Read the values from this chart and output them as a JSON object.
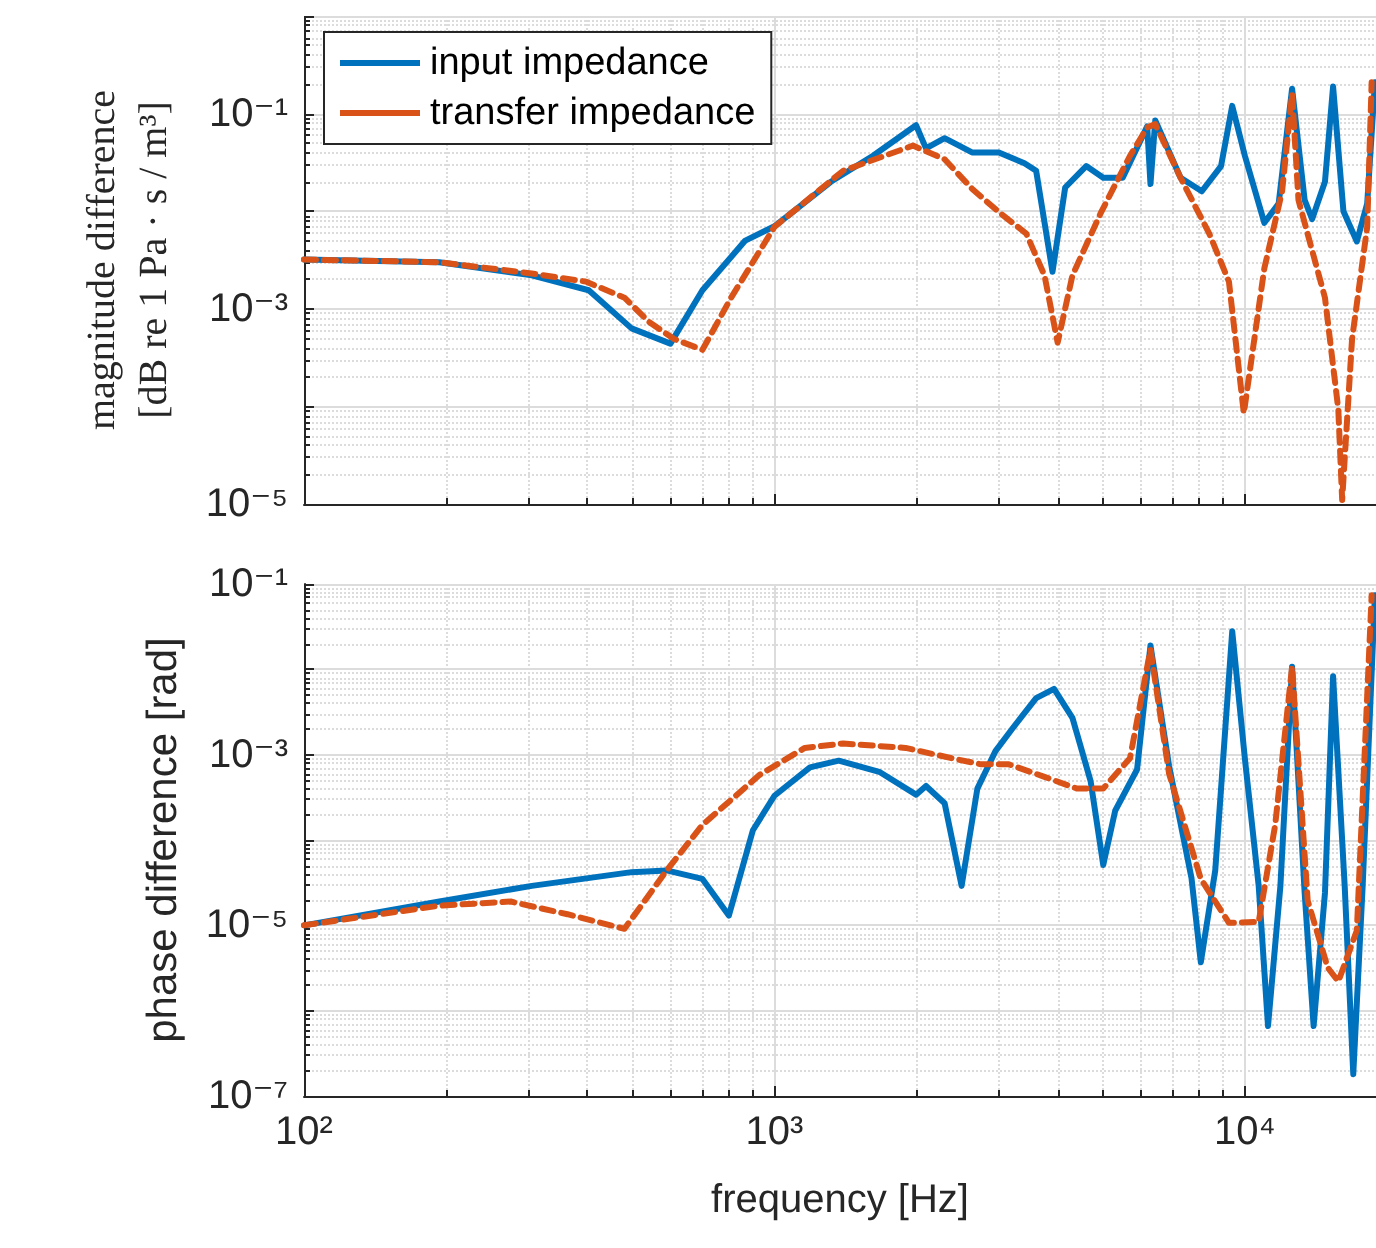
{
  "chart_data": [
    {
      "type": "line",
      "ylabel": "magnitude difference\n[dB re 1 Pa · s / m³]",
      "legend": "top left",
      "grid": true,
      "marker": "none",
      "log": "xy",
      "tick_labels": "y",
      "xlim": [
        100,
        19000
      ],
      "ylim": [
        1e-05,
        1
      ],
      "xticks": [
        {
          "value": 100,
          "label": null
        },
        {
          "value": 1000,
          "label": null
        },
        {
          "value": 10000,
          "label": null
        }
      ],
      "yticks": [
        {
          "value": 1e-05,
          "label": "10⁻⁵"
        },
        {
          "value": 0.0001,
          "label": null
        },
        {
          "value": 0.001,
          "label": "10⁻³"
        },
        {
          "value": 0.01,
          "label": null
        },
        {
          "value": 0.1,
          "label": "10⁻¹"
        },
        {
          "value": 1,
          "label": null
        }
      ],
      "series": [
        {
          "name": "input impedance",
          "color": "#0072bd",
          "line_style": "solid",
          "x": [
            100,
            194,
            305,
            403,
            497,
            601,
            703,
            867,
            1000,
            1318,
            1620,
            2000,
            2100,
            2300,
            2630,
            3000,
            3400,
            3600,
            3900,
            4150,
            4600,
            5000,
            5500,
            6200,
            6300,
            6450,
            7300,
            8100,
            8900,
            9400,
            10000,
            11000,
            11800,
            12600,
            13400,
            13900,
            14800,
            15400,
            16200,
            17300,
            18200,
            18900
          ],
          "values": [
            0.0032,
            0.003,
            0.0022,
            0.00155,
            0.00063,
            0.00044,
            0.00155,
            0.005,
            0.007,
            0.02,
            0.037,
            0.076,
            0.044,
            0.056,
            0.04,
            0.04,
            0.031,
            0.026,
            0.0024,
            0.0175,
            0.029,
            0.022,
            0.022,
            0.074,
            0.019,
            0.085,
            0.022,
            0.016,
            0.029,
            0.12,
            0.037,
            0.0076,
            0.012,
            0.18,
            0.013,
            0.0083,
            0.02,
            0.19,
            0.01,
            0.0049,
            0.012,
            0.21
          ]
        },
        {
          "name": "transfer impedance",
          "color": "#d95319",
          "line_style": "dashed",
          "x": [
            100,
            194,
            305,
            397,
            480,
            540,
            612,
            703,
            809,
            1000,
            1400,
            1970,
            2300,
            2630,
            3000,
            3430,
            3750,
            4000,
            4300,
            4950,
            5700,
            6200,
            6450,
            7300,
            8400,
            9250,
            9950,
            11000,
            12000,
            12600,
            13000,
            14800,
            15800,
            16100,
            16900,
            18200,
            18600
          ],
          "values": [
            0.0032,
            0.003,
            0.0023,
            0.0019,
            0.0013,
            0.00074,
            0.00049,
            0.00038,
            0.0013,
            0.0069,
            0.026,
            0.047,
            0.034,
            0.017,
            0.0098,
            0.0059,
            0.0022,
            0.00045,
            0.0022,
            0.0098,
            0.037,
            0.072,
            0.078,
            0.022,
            0.0059,
            0.0019,
            8.5e-05,
            0.0026,
            0.016,
            0.16,
            0.013,
            0.0013,
            9.3e-05,
            1.1e-05,
            0.00049,
            0.0069,
            0.21
          ]
        }
      ]
    },
    {
      "type": "line",
      "xlabel": "frequency [Hz]",
      "ylabel": "phase difference [rad]",
      "legend": false,
      "grid": true,
      "marker": "none",
      "log": "xy",
      "xlim": [
        100,
        19000
      ],
      "ylim": [
        1e-07,
        0.1
      ],
      "xticks": [
        {
          "value": 100,
          "label": "10²"
        },
        {
          "value": 1000,
          "label": "10³"
        },
        {
          "value": 10000,
          "label": "10⁴"
        }
      ],
      "yticks": [
        {
          "value": 1e-07,
          "label": "10⁻⁷"
        },
        {
          "value": 1e-06,
          "label": null
        },
        {
          "value": 1e-05,
          "label": "10⁻⁵"
        },
        {
          "value": 0.0001,
          "label": null
        },
        {
          "value": 0.001,
          "label": "10⁻³"
        },
        {
          "value": 0.01,
          "label": null
        },
        {
          "value": 0.1,
          "label": "10⁻¹"
        }
      ],
      "series": [
        {
          "color": "#0072bd",
          "line_style": "solid",
          "x": [
            100,
            194,
            305,
            497,
            590,
            703,
            800,
            900,
            1000,
            1190,
            1370,
            1670,
            2000,
            2100,
            2300,
            2500,
            2700,
            2950,
            3200,
            3600,
            3930,
            4300,
            4700,
            5000,
            5300,
            5900,
            6300,
            6900,
            7700,
            8060,
            8650,
            9400,
            10000,
            10700,
            11200,
            11900,
            12600,
            13400,
            14000,
            14800,
            15400,
            16300,
            17000,
            17800,
            18900
          ],
          "values": [
            1e-05,
            1.9e-05,
            2.9e-05,
            4.2e-05,
            4.4e-05,
            3.5e-05,
            1.3e-05,
            0.00013,
            0.00033,
            0.00071,
            0.00085,
            0.00063,
            0.00034,
            0.00043,
            0.00027,
            2.9e-05,
            0.0004,
            0.0011,
            0.002,
            0.0046,
            0.0059,
            0.0027,
            0.00049,
            5.1e-05,
            0.00022,
            0.00067,
            0.019,
            0.00074,
            3.6e-05,
            3.7e-06,
            4.4e-05,
            0.028,
            0.0009,
            2.9e-05,
            6.6e-07,
            2.9e-05,
            0.0107,
            2.4e-05,
            6.6e-07,
            2.4e-05,
            0.0083,
            2.9e-05,
            1.8e-07,
            2.9e-05,
            0.074
          ]
        },
        {
          "color": "#d95319",
          "line_style": "dashed",
          "x": [
            100,
            194,
            275,
            363,
            480,
            590,
            703,
            930,
            1160,
            1400,
            1900,
            2400,
            2750,
            3150,
            3750,
            4400,
            5000,
            5700,
            6300,
            6900,
            8060,
            9250,
            10700,
            11600,
            12600,
            13600,
            15000,
            15800,
            17300,
            18600
          ],
          "values": [
            1e-05,
            1.7e-05,
            1.9e-05,
            1.35e-05,
            9.1e-06,
            4.4e-05,
            0.00015,
            0.00058,
            0.0012,
            0.00135,
            0.0012,
            0.0009,
            0.00077,
            0.00077,
            0.00055,
            0.0004,
            0.0004,
            0.00091,
            0.017,
            0.0006,
            3.5e-05,
            1.07e-05,
            1.1e-05,
            0.00015,
            0.0107,
            1.95e-05,
            3.2e-06,
            2.2e-06,
            8.7e-06,
            0.074
          ]
        }
      ]
    }
  ]
}
